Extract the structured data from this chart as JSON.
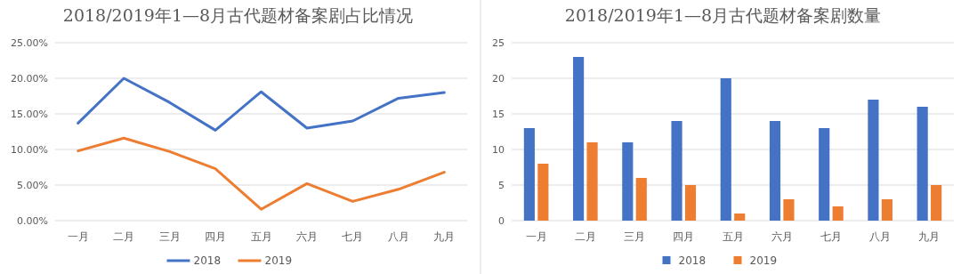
{
  "chart_data": [
    {
      "type": "line",
      "title": "2018/2019年1—8月古代题材备案剧占比情况",
      "categories": [
        "一月",
        "二月",
        "三月",
        "四月",
        "五月",
        "六月",
        "七月",
        "八月",
        "九月"
      ],
      "series": [
        {
          "name": "2018",
          "color": "#4472c4",
          "values": [
            13.7,
            20.0,
            16.6,
            12.7,
            18.1,
            13.0,
            14.0,
            17.2,
            18.0
          ]
        },
        {
          "name": "2019",
          "color": "#ed7d31",
          "values": [
            9.8,
            11.6,
            9.7,
            7.3,
            1.6,
            5.2,
            2.7,
            4.4,
            6.8
          ]
        }
      ],
      "ylim": [
        0,
        25
      ],
      "yticks": [
        {
          "value": 0,
          "label": "0.00%"
        },
        {
          "value": 5,
          "label": "5.00%"
        },
        {
          "value": 10,
          "label": "10.00%"
        },
        {
          "value": 15,
          "label": "15.00%"
        },
        {
          "value": 20,
          "label": "20.00%"
        },
        {
          "value": 25,
          "label": "25.00%"
        }
      ],
      "grid": "y",
      "legend": "bottom",
      "marker": "none",
      "line_style": "solid"
    },
    {
      "type": "bar",
      "title": "2018/2019年1—8月古代题材备案剧数量",
      "categories": [
        "一月",
        "二月",
        "三月",
        "四月",
        "五月",
        "六月",
        "七月",
        "八月",
        "九月"
      ],
      "series": [
        {
          "name": "2018",
          "color": "#4472c4",
          "values": [
            13,
            23,
            11,
            14,
            20,
            14,
            13,
            17,
            16
          ]
        },
        {
          "name": "2019",
          "color": "#ed7d31",
          "values": [
            8,
            11,
            6,
            5,
            1,
            3,
            2,
            3,
            5
          ]
        }
      ],
      "ylim": [
        0,
        25
      ],
      "yticks": [
        0,
        5,
        10,
        15,
        20,
        25
      ],
      "grid": "y",
      "legend": "bottom"
    }
  ]
}
